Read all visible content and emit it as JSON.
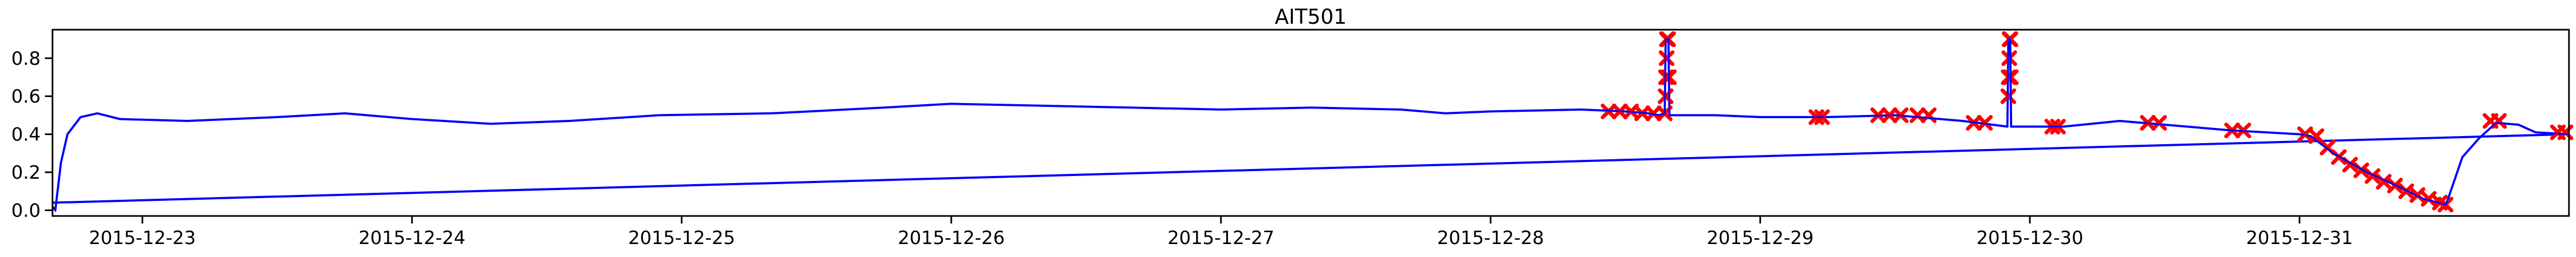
{
  "chart_data": {
    "type": "line",
    "title": "AIT501",
    "xlabel": "",
    "ylabel": "",
    "grid": false,
    "xlim": [
      "2015-12-22 16:00",
      "2015-12-31 23:59"
    ],
    "ylim": [
      -0.03,
      0.95
    ],
    "x_ticks": [
      "2015-12-23",
      "2015-12-24",
      "2015-12-25",
      "2015-12-26",
      "2015-12-27",
      "2015-12-28",
      "2015-12-29",
      "2015-12-30",
      "2015-12-31"
    ],
    "y_ticks": [
      0.0,
      0.2,
      0.4,
      0.6,
      0.8
    ],
    "y_tick_labels": [
      "0.0",
      "0.2",
      "0.4",
      "0.6",
      "0.8"
    ],
    "colors": {
      "line": "#0000ff",
      "anomaly": "#ff0000"
    },
    "series": [
      {
        "kind": "line",
        "points": [
          [
            "2015-12-22 16:00",
            0.02
          ],
          [
            "2015-12-22 16:15",
            0.0
          ],
          [
            "2015-12-22 16:45",
            0.25
          ],
          [
            "2015-12-22 17:20",
            0.4
          ],
          [
            "2015-12-22 18:30",
            0.49
          ],
          [
            "2015-12-22 20:00",
            0.51
          ],
          [
            "2015-12-22 22:00",
            0.48
          ],
          [
            "2015-12-23 04:00",
            0.47
          ],
          [
            "2015-12-23 12:00",
            0.49
          ],
          [
            "2015-12-23 18:00",
            0.51
          ],
          [
            "2015-12-24 00:00",
            0.48
          ],
          [
            "2015-12-24 07:00",
            0.455
          ],
          [
            "2015-12-24 14:00",
            0.47
          ],
          [
            "2015-12-24 22:00",
            0.5
          ],
          [
            "2015-12-25 08:00",
            0.51
          ],
          [
            "2015-12-25 18:00",
            0.54
          ],
          [
            "2015-12-26 00:00",
            0.56
          ],
          [
            "2015-12-26 08:00",
            0.55
          ],
          [
            "2015-12-26 16:00",
            0.54
          ],
          [
            "2015-12-27 00:00",
            0.53
          ],
          [
            "2015-12-27 08:00",
            0.54
          ],
          [
            "2015-12-27 16:00",
            0.53
          ],
          [
            "2015-12-27 20:00",
            0.51
          ],
          [
            "2015-12-28 00:00",
            0.52
          ],
          [
            "2015-12-28 08:00",
            0.53
          ],
          [
            "2015-12-28 12:00",
            0.52
          ],
          [
            "2015-12-28 14:00",
            0.51
          ],
          [
            "2015-12-28 15:00",
            0.5
          ],
          [
            "2015-12-28 15:30",
            0.51
          ],
          [
            "2015-12-28 15:35",
            0.9
          ],
          [
            "2015-12-28 15:50",
            0.9
          ],
          [
            "2015-12-28 15:55",
            0.5
          ],
          [
            "2015-12-28 20:00",
            0.5
          ],
          [
            "2015-12-29 00:00",
            0.49
          ],
          [
            "2015-12-29 06:00",
            0.49
          ],
          [
            "2015-12-29 12:00",
            0.5
          ],
          [
            "2015-12-29 18:00",
            0.47
          ],
          [
            "2015-12-29 22:00",
            0.44
          ],
          [
            "2015-12-29 22:05",
            0.9
          ],
          [
            "2015-12-29 22:15",
            0.9
          ],
          [
            "2015-12-29 22:20",
            0.44
          ],
          [
            "2015-12-30 03:00",
            0.44
          ],
          [
            "2015-12-30 08:00",
            0.47
          ],
          [
            "2015-12-30 12:00",
            0.45
          ],
          [
            "2015-12-30 18:00",
            0.42
          ],
          [
            "2015-12-31 00:00",
            0.4
          ],
          [
            "2015-12-31 01:00",
            0.39
          ],
          [
            "2015-12-31 03:00",
            0.3
          ],
          [
            "2015-12-31 06:00",
            0.2
          ],
          [
            "2015-12-31 09:00",
            0.12
          ],
          [
            "2015-12-31 11:00",
            0.06
          ],
          [
            "2015-12-31 13:00",
            0.03
          ],
          [
            "2015-12-31 13:10",
            0.05
          ],
          [
            "2015-12-31 14:30",
            0.28
          ],
          [
            "2015-12-31 16:00",
            0.38
          ],
          [
            "2015-12-31 17:30",
            0.46
          ],
          [
            "2015-12-31 19:30",
            0.45
          ],
          [
            "2015-12-31 21:00",
            0.41
          ],
          [
            "2015-12-31 23:59",
            0.4
          ]
        ]
      },
      {
        "kind": "line",
        "points": [
          [
            "2015-12-22 16:00",
            0.04
          ],
          [
            "2015-12-31 23:59",
            0.4
          ]
        ]
      },
      {
        "kind": "scatter",
        "points": [
          [
            "2015-12-28 10:30",
            0.52
          ],
          [
            "2015-12-28 11:30",
            0.52
          ],
          [
            "2015-12-28 12:30",
            0.52
          ],
          [
            "2015-12-28 13:30",
            0.51
          ],
          [
            "2015-12-28 14:30",
            0.51
          ],
          [
            "2015-12-28 15:30",
            0.51
          ],
          [
            "2015-12-28 15:35",
            0.6
          ],
          [
            "2015-12-28 15:37",
            0.7
          ],
          [
            "2015-12-28 15:40",
            0.8
          ],
          [
            "2015-12-28 15:42",
            0.9
          ],
          [
            "2015-12-28 15:48",
            0.9
          ],
          [
            "2015-12-28 15:52",
            0.7
          ],
          [
            "2015-12-29 05:00",
            0.49
          ],
          [
            "2015-12-29 05:30",
            0.49
          ],
          [
            "2015-12-29 10:30",
            0.5
          ],
          [
            "2015-12-29 11:30",
            0.5
          ],
          [
            "2015-12-29 12:30",
            0.5
          ],
          [
            "2015-12-29 14:00",
            0.5
          ],
          [
            "2015-12-29 15:00",
            0.5
          ],
          [
            "2015-12-29 19:00",
            0.46
          ],
          [
            "2015-12-29 20:00",
            0.46
          ],
          [
            "2015-12-29 22:05",
            0.6
          ],
          [
            "2015-12-29 22:07",
            0.7
          ],
          [
            "2015-12-29 22:10",
            0.8
          ],
          [
            "2015-12-29 22:12",
            0.9
          ],
          [
            "2015-12-29 22:16",
            0.9
          ],
          [
            "2015-12-29 22:18",
            0.7
          ],
          [
            "2015-12-30 02:00",
            0.44
          ],
          [
            "2015-12-30 02:30",
            0.44
          ],
          [
            "2015-12-30 10:30",
            0.46
          ],
          [
            "2015-12-30 11:30",
            0.46
          ],
          [
            "2015-12-30 18:00",
            0.42
          ],
          [
            "2015-12-30 19:00",
            0.42
          ],
          [
            "2015-12-31 00:30",
            0.4
          ],
          [
            "2015-12-31 01:30",
            0.39
          ],
          [
            "2015-12-31 02:30",
            0.33
          ],
          [
            "2015-12-31 03:30",
            0.28
          ],
          [
            "2015-12-31 04:30",
            0.24
          ],
          [
            "2015-12-31 05:30",
            0.21
          ],
          [
            "2015-12-31 06:30",
            0.18
          ],
          [
            "2015-12-31 07:30",
            0.15
          ],
          [
            "2015-12-31 08:30",
            0.13
          ],
          [
            "2015-12-31 09:30",
            0.1
          ],
          [
            "2015-12-31 10:30",
            0.08
          ],
          [
            "2015-12-31 11:30",
            0.06
          ],
          [
            "2015-12-31 12:30",
            0.04
          ],
          [
            "2015-12-31 13:00",
            0.03
          ],
          [
            "2015-12-31 17:00",
            0.47
          ],
          [
            "2015-12-31 17:45",
            0.47
          ],
          [
            "2015-12-31 23:00",
            0.41
          ],
          [
            "2015-12-31 23:40",
            0.41
          ]
        ]
      }
    ]
  }
}
